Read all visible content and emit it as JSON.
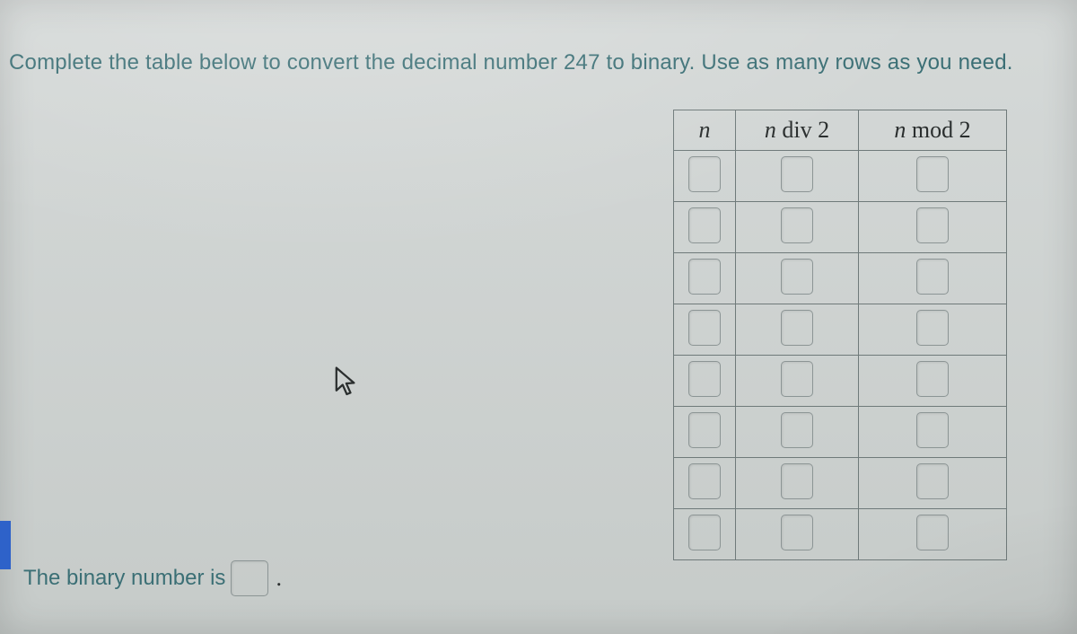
{
  "instruction": {
    "pre": "Complete the table below to convert the decimal number ",
    "number": "247",
    "post": " to binary. Use as many rows as you need."
  },
  "table": {
    "headers": {
      "n": "n",
      "div": {
        "var": "n",
        "op": " div ",
        "k": "2"
      },
      "mod": {
        "var": "n",
        "op": " mod ",
        "k": "2"
      }
    },
    "rowCount": 8,
    "columns": {
      "n": {
        "widthPx": 68
      },
      "div": {
        "widthPx": 136
      },
      "mod": {
        "widthPx": 164
      }
    },
    "cellBox": {
      "widthPx": 34,
      "heightPx": 38,
      "borderColor": "#8c9595",
      "borderRadiusPx": 5
    },
    "borderColor": "#6f7a7a",
    "headerFontSizePt": 20,
    "rowHeightPx": 56
  },
  "answer": {
    "label": "The binary number is",
    "trailing": "."
  },
  "colors": {
    "background": "#c6cbc9",
    "text": "#3b6f75",
    "tableText": "#2a2e2e",
    "leftMarker": "#2e62c9"
  },
  "cursorIcon": "arrow-pointer",
  "dimensions": {
    "widthPx": 1200,
    "heightPx": 706
  }
}
